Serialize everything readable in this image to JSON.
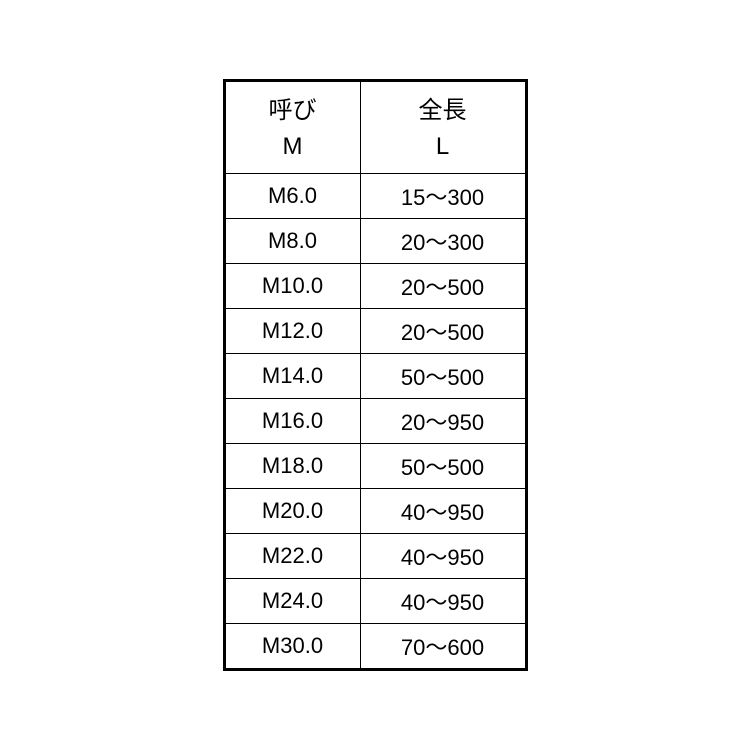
{
  "table": {
    "type": "table",
    "background_color": "#ffffff",
    "border_color": "#000000",
    "text_color": "#000000",
    "header_fontsize": 24,
    "cell_fontsize": 22,
    "columns": [
      {
        "label_top": "呼び",
        "label_bottom": "M",
        "width": 135
      },
      {
        "label_top": "全長",
        "label_bottom": "L",
        "width": 165
      }
    ],
    "rows": [
      {
        "m": "M6.0",
        "l": "15～300"
      },
      {
        "m": "M8.0",
        "l": "20～300"
      },
      {
        "m": "M10.0",
        "l": "20～500"
      },
      {
        "m": "M12.0",
        "l": "20～500"
      },
      {
        "m": "M14.0",
        "l": "50～500"
      },
      {
        "m": "M16.0",
        "l": "20～950"
      },
      {
        "m": "M18.0",
        "l": "50～500"
      },
      {
        "m": "M20.0",
        "l": "40～950"
      },
      {
        "m": "M22.0",
        "l": "40～950"
      },
      {
        "m": "M24.0",
        "l": "40～950"
      },
      {
        "m": "M30.0",
        "l": "70～600"
      }
    ]
  }
}
